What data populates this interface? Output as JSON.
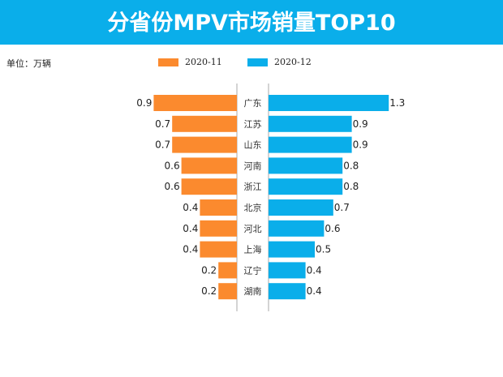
{
  "header": {
    "title": "分省份MPV市场销量TOP10"
  },
  "unit": "单位：万辆",
  "colors": {
    "header": "#0aaeea",
    "series1": "#fb8a2e",
    "series2": "#0aaeea"
  },
  "chart_data": {
    "type": "bar",
    "orientation": "horizontal-butterfly",
    "title": "分省份MPV市场销量TOP10",
    "categories": [
      "广东",
      "江苏",
      "山东",
      "河南",
      "浙江",
      "北京",
      "河北",
      "上海",
      "辽宁",
      "湖南"
    ],
    "series": [
      {
        "name": "2020-11",
        "values": [
          0.9,
          0.7,
          0.7,
          0.6,
          0.6,
          0.4,
          0.4,
          0.4,
          0.2,
          0.2
        ]
      },
      {
        "name": "2020-12",
        "values": [
          1.3,
          0.9,
          0.9,
          0.8,
          0.8,
          0.7,
          0.6,
          0.5,
          0.4,
          0.4
        ]
      }
    ],
    "legend": "top"
  }
}
